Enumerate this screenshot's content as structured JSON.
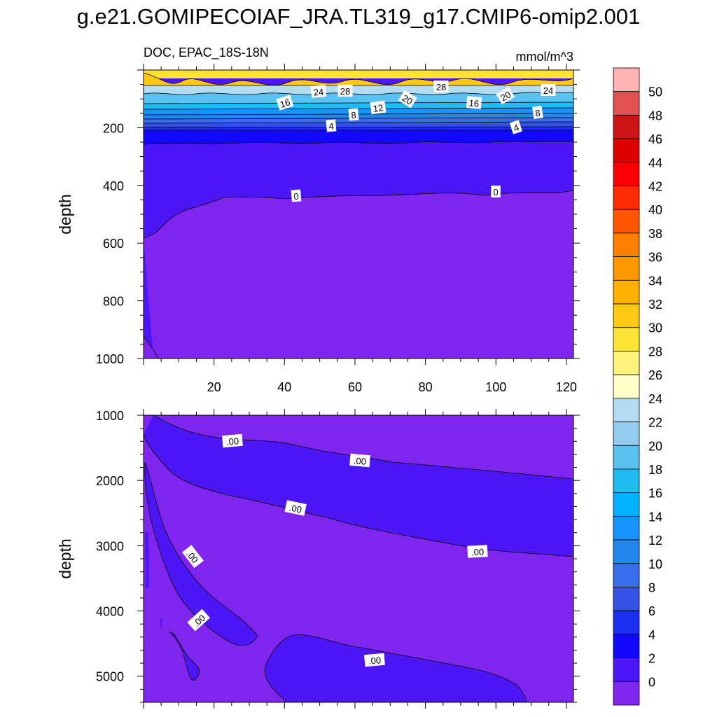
{
  "title": "g.e21.GOMIPECOIAF_JRA.TL319_g17.CMIP6-omip2.001",
  "chart_data": {
    "type": "heatmap",
    "left_label": "DOC, EPAC_18S-18N",
    "right_label": "mmol/m^3",
    "ylabel": "depth",
    "colorbar": {
      "levels": [
        "50",
        "48",
        "46",
        "44",
        "42",
        "40",
        "38",
        "36",
        "34",
        "32",
        "30",
        "28",
        "26",
        "24",
        "22",
        "20",
        "18",
        "16",
        "14",
        "12",
        "10",
        "8",
        "6",
        "4",
        "2",
        "0"
      ],
      "colors": [
        "#ffb2b2",
        "#e35050",
        "#cd1414",
        "#dd0000",
        "#fa0000",
        "#ff2b00",
        "#ff5600",
        "#ff7f00",
        "#ff9700",
        "#ffb000",
        "#ffc814",
        "#ffe236",
        "#fff27a",
        "#ffffc8",
        "#b3dcf2",
        "#92ccf0",
        "#59c2f2",
        "#1fbbf5",
        "#00b2ff",
        "#1794ff",
        "#2187ef",
        "#386ded",
        "#3451e6",
        "#1b2ef3",
        "#1209fc",
        "#4c16f6",
        "#8024ef"
      ]
    },
    "panels": [
      {
        "name": "upper",
        "ylim": [
          0,
          1000
        ],
        "yticks": [
          "200",
          "400",
          "600",
          "800",
          "1000"
        ],
        "xticks": [
          "20",
          "40",
          "60",
          "80",
          "100",
          "120"
        ],
        "contour_labels": [
          "16",
          "24",
          "28",
          "20",
          "12",
          "8",
          "4",
          "28",
          "16",
          "20",
          "24",
          "8",
          "4",
          "0",
          "0"
        ]
      },
      {
        "name": "lower",
        "ylim": [
          1000,
          5400
        ],
        "yticks": [
          "1000",
          "2000",
          "3000",
          "4000",
          "5000"
        ],
        "contour_labels": [
          ".00",
          ".00",
          ".00",
          ".00",
          ".00",
          ".00",
          ".00"
        ]
      }
    ]
  }
}
